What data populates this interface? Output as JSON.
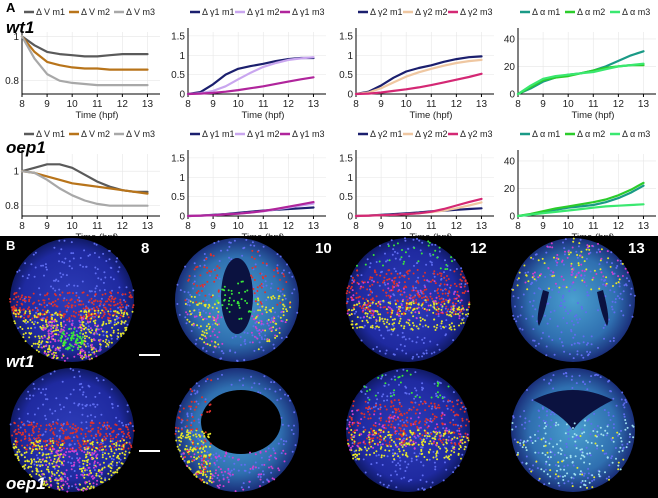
{
  "panel_a_letter": "A",
  "panel_b_letter": "B",
  "rows": [
    "wt1",
    "oep1"
  ],
  "xlabel": "Time (hpf)",
  "xticks": [
    "8",
    "9",
    "10",
    "11",
    "12",
    "13"
  ],
  "colors": {
    "V_m1": "#5a5a5a",
    "V_m2": "#b8741a",
    "V_m3": "#a8a8a8",
    "g_m1": "#1b1f6e",
    "g_m2": "#c9a6ef",
    "g_m3": "#b0259c",
    "g2_m1": "#1b1f6e",
    "g2_m2": "#efc7a1",
    "g2_m3": "#d42874",
    "a_m1": "#1a9a86",
    "a_m2": "#2bcc2b",
    "a_m3": "#3ae870"
  },
  "chart_data": [
    {
      "type": "line",
      "row": "wt1",
      "legend": [
        "Δ V m1",
        "Δ V m2",
        "Δ V m3"
      ],
      "yticks": [
        "0.8",
        "1"
      ],
      "ylim": [
        0.74,
        1.02
      ],
      "xlim": [
        8,
        13.5
      ],
      "series": [
        {
          "name": "Δ V m1",
          "color": "V_m1",
          "x": [
            8,
            8.5,
            9,
            9.5,
            10,
            10.5,
            11,
            11.5,
            12,
            12.5,
            13
          ],
          "y": [
            1.0,
            0.96,
            0.93,
            0.92,
            0.915,
            0.91,
            0.91,
            0.915,
            0.92,
            0.92,
            0.92
          ]
        },
        {
          "name": "Δ V m2",
          "color": "V_m2",
          "x": [
            8,
            8.5,
            9,
            9.5,
            10,
            10.5,
            11,
            11.5,
            12,
            12.5,
            13
          ],
          "y": [
            1.0,
            0.93,
            0.885,
            0.87,
            0.86,
            0.855,
            0.855,
            0.85,
            0.85,
            0.85,
            0.85
          ]
        },
        {
          "name": "Δ V m3",
          "color": "V_m3",
          "x": [
            8,
            8.5,
            9,
            9.5,
            10,
            10.5,
            11,
            11.5,
            12,
            12.5,
            13
          ],
          "y": [
            1.0,
            0.9,
            0.83,
            0.8,
            0.79,
            0.785,
            0.78,
            0.78,
            0.78,
            0.78,
            0.78
          ]
        }
      ]
    },
    {
      "type": "line",
      "row": "wt1",
      "legend": [
        "Δ γ1 m1",
        "Δ γ1 m2",
        "Δ γ1 m3"
      ],
      "yticks": [
        "0",
        "0.5",
        "1",
        "1.5"
      ],
      "ylim": [
        0,
        1.6
      ],
      "xlim": [
        8,
        13.5
      ],
      "series": [
        {
          "name": "Δ γ1 m1",
          "color": "g_m1",
          "x": [
            8,
            8.5,
            9,
            9.5,
            10,
            10.5,
            11,
            11.5,
            12,
            12.5,
            13
          ],
          "y": [
            0,
            0.05,
            0.25,
            0.5,
            0.65,
            0.72,
            0.78,
            0.85,
            0.9,
            0.93,
            0.93
          ]
        },
        {
          "name": "Δ γ1 m2",
          "color": "g_m2",
          "x": [
            8,
            8.5,
            9,
            9.5,
            10,
            10.5,
            11,
            11.5,
            12,
            12.5,
            13
          ],
          "y": [
            0,
            0.02,
            0.08,
            0.2,
            0.38,
            0.55,
            0.7,
            0.8,
            0.88,
            0.92,
            0.95
          ]
        },
        {
          "name": "Δ γ1 m3",
          "color": "g_m3",
          "x": [
            8,
            8.5,
            9,
            9.5,
            10,
            10.5,
            11,
            11.5,
            12,
            12.5,
            13
          ],
          "y": [
            0,
            0.01,
            0.03,
            0.06,
            0.1,
            0.15,
            0.2,
            0.26,
            0.32,
            0.38,
            0.43
          ]
        }
      ]
    },
    {
      "type": "line",
      "row": "wt1",
      "legend": [
        "Δ γ2 m1",
        "Δ γ2 m2",
        "Δ γ2 m3"
      ],
      "yticks": [
        "0",
        "0.5",
        "1",
        "1.5"
      ],
      "ylim": [
        0,
        1.6
      ],
      "xlim": [
        8,
        13.5
      ],
      "series": [
        {
          "name": "Δ γ2 m1",
          "color": "g2_m1",
          "x": [
            8,
            8.5,
            9,
            9.5,
            10,
            10.5,
            11,
            11.5,
            12,
            12.5,
            13
          ],
          "y": [
            0,
            0.06,
            0.22,
            0.42,
            0.58,
            0.67,
            0.74,
            0.83,
            0.9,
            0.95,
            0.97
          ]
        },
        {
          "name": "Δ γ2 m2",
          "color": "g2_m2",
          "x": [
            8,
            8.5,
            9,
            9.5,
            10,
            10.5,
            11,
            11.5,
            12,
            12.5,
            13
          ],
          "y": [
            0,
            0.04,
            0.15,
            0.3,
            0.45,
            0.56,
            0.65,
            0.73,
            0.8,
            0.85,
            0.88
          ]
        },
        {
          "name": "Δ γ2 m3",
          "color": "g2_m3",
          "x": [
            8,
            8.5,
            9,
            9.5,
            10,
            10.5,
            11,
            11.5,
            12,
            12.5,
            13
          ],
          "y": [
            0,
            0.01,
            0.04,
            0.08,
            0.12,
            0.17,
            0.23,
            0.3,
            0.37,
            0.44,
            0.52
          ]
        }
      ]
    },
    {
      "type": "line",
      "row": "wt1",
      "legend": [
        "Δ α m1",
        "Δ α m2",
        "Δ α m3"
      ],
      "yticks": [
        "0",
        "20",
        "40"
      ],
      "ylim": [
        0,
        45
      ],
      "xlim": [
        8,
        13.5
      ],
      "series": [
        {
          "name": "Δ α m1",
          "color": "a_m1",
          "x": [
            8,
            8.5,
            9,
            9.5,
            10,
            10.5,
            11,
            11.5,
            12,
            12.5,
            13
          ],
          "y": [
            0,
            4,
            9,
            12,
            14,
            15,
            17,
            20,
            24,
            28,
            31
          ]
        },
        {
          "name": "Δ α m2",
          "color": "a_m2",
          "x": [
            8,
            8.5,
            9,
            9.5,
            10,
            10.5,
            11,
            11.5,
            12,
            12.5,
            13
          ],
          "y": [
            0,
            5,
            10,
            12,
            13,
            15,
            17,
            19,
            20,
            21,
            21
          ]
        },
        {
          "name": "Δ α m3",
          "color": "a_m3",
          "x": [
            8,
            8.5,
            9,
            9.5,
            10,
            10.5,
            11,
            11.5,
            12,
            12.5,
            13
          ],
          "y": [
            0,
            6,
            11,
            13,
            14,
            15,
            16,
            18,
            20,
            21,
            22
          ]
        }
      ]
    },
    {
      "type": "line",
      "row": "oep1",
      "legend": [
        "Δ V m1",
        "Δ V m2",
        "Δ V m3"
      ],
      "yticks": [
        "0.8",
        "1"
      ],
      "ylim": [
        0.74,
        1.1
      ],
      "xlim": [
        8,
        13.5
      ],
      "series": [
        {
          "name": "Δ V m1",
          "color": "V_m1",
          "x": [
            8,
            8.5,
            9,
            9.5,
            10,
            10.5,
            11,
            11.5,
            12,
            12.5,
            13
          ],
          "y": [
            1.0,
            1.02,
            1.04,
            1.04,
            1.02,
            0.98,
            0.94,
            0.91,
            0.89,
            0.88,
            0.88
          ]
        },
        {
          "name": "Δ V m2",
          "color": "V_m2",
          "x": [
            8,
            8.5,
            9,
            9.5,
            10,
            10.5,
            11,
            11.5,
            12,
            12.5,
            13
          ],
          "y": [
            1.0,
            0.99,
            0.97,
            0.95,
            0.93,
            0.92,
            0.91,
            0.9,
            0.89,
            0.88,
            0.87
          ]
        },
        {
          "name": "Δ V m3",
          "color": "V_m3",
          "x": [
            8,
            8.5,
            9,
            9.5,
            10,
            10.5,
            11,
            11.5,
            12,
            12.5,
            13
          ],
          "y": [
            1.0,
            0.99,
            0.95,
            0.9,
            0.86,
            0.83,
            0.81,
            0.8,
            0.8,
            0.8,
            0.8
          ]
        }
      ]
    },
    {
      "type": "line",
      "row": "oep1",
      "legend": [
        "Δ γ1 m1",
        "Δ γ1 m2",
        "Δ γ1 m3"
      ],
      "yticks": [
        "0",
        "0.5",
        "1",
        "1.5"
      ],
      "ylim": [
        0,
        1.6
      ],
      "xlim": [
        8,
        13.5
      ],
      "series": [
        {
          "name": "Δ γ1 m1",
          "color": "g_m1",
          "x": [
            8,
            8.5,
            9,
            9.5,
            10,
            10.5,
            11,
            11.5,
            12,
            12.5,
            13
          ],
          "y": [
            0,
            0.01,
            0.03,
            0.05,
            0.08,
            0.11,
            0.14,
            0.16,
            0.18,
            0.2,
            0.22
          ]
        },
        {
          "name": "Δ γ1 m2",
          "color": "g_m2",
          "x": [
            8,
            8.5,
            9,
            9.5,
            10,
            10.5,
            11,
            11.5,
            12,
            12.5,
            13
          ],
          "y": [
            0,
            0.01,
            0.02,
            0.04,
            0.06,
            0.09,
            0.12,
            0.17,
            0.22,
            0.27,
            0.32
          ]
        },
        {
          "name": "Δ γ1 m3",
          "color": "g_m3",
          "x": [
            8,
            8.5,
            9,
            9.5,
            10,
            10.5,
            11,
            11.5,
            12,
            12.5,
            13
          ],
          "y": [
            0,
            0.01,
            0.02,
            0.04,
            0.06,
            0.09,
            0.13,
            0.18,
            0.24,
            0.3,
            0.36
          ]
        }
      ]
    },
    {
      "type": "line",
      "row": "oep1",
      "legend": [
        "Δ γ2 m1",
        "Δ γ2 m2",
        "Δ γ2 m3"
      ],
      "yticks": [
        "0",
        "0.5",
        "1",
        "1.5"
      ],
      "ylim": [
        0,
        1.6
      ],
      "xlim": [
        8,
        13.5
      ],
      "series": [
        {
          "name": "Δ γ2 m1",
          "color": "g2_m1",
          "x": [
            8,
            8.5,
            9,
            9.5,
            10,
            10.5,
            11,
            11.5,
            12,
            12.5,
            13
          ],
          "y": [
            0,
            0.01,
            0.03,
            0.05,
            0.07,
            0.09,
            0.12,
            0.14,
            0.16,
            0.18,
            0.2
          ]
        },
        {
          "name": "Δ γ2 m2",
          "color": "g2_m2",
          "x": [
            8,
            8.5,
            9,
            9.5,
            10,
            10.5,
            11,
            11.5,
            12,
            12.5,
            13
          ],
          "y": [
            0,
            0.01,
            0.02,
            0.03,
            0.05,
            0.07,
            0.1,
            0.14,
            0.2,
            0.27,
            0.35
          ]
        },
        {
          "name": "Δ γ2 m3",
          "color": "g2_m3",
          "x": [
            8,
            8.5,
            9,
            9.5,
            10,
            10.5,
            11,
            11.5,
            12,
            12.5,
            13
          ],
          "y": [
            0,
            0.01,
            0.02,
            0.03,
            0.05,
            0.07,
            0.11,
            0.18,
            0.27,
            0.36,
            0.44
          ]
        }
      ]
    },
    {
      "type": "line",
      "row": "oep1",
      "legend": [
        "Δ α m1",
        "Δ α m2",
        "Δ α m3"
      ],
      "yticks": [
        "0",
        "20",
        "40"
      ],
      "ylim": [
        0,
        45
      ],
      "xlim": [
        8,
        13.5
      ],
      "series": [
        {
          "name": "Δ α m1",
          "color": "a_m1",
          "x": [
            8,
            8.5,
            9,
            9.5,
            10,
            10.5,
            11,
            11.5,
            12,
            12.5,
            13
          ],
          "y": [
            0,
            1,
            3,
            4.5,
            6,
            7,
            8,
            10,
            13,
            17,
            22
          ]
        },
        {
          "name": "Δ α m2",
          "color": "a_m2",
          "x": [
            8,
            8.5,
            9,
            9.5,
            10,
            10.5,
            11,
            11.5,
            12,
            12.5,
            13
          ],
          "y": [
            0,
            1.5,
            3.5,
            5.5,
            7,
            8.5,
            10,
            12,
            15,
            19,
            24
          ]
        },
        {
          "name": "Δ α m3",
          "color": "a_m3",
          "x": [
            8,
            8.5,
            9,
            9.5,
            10,
            10.5,
            11,
            11.5,
            12,
            12.5,
            13
          ],
          "y": [
            0,
            1,
            2,
            3,
            4,
            5,
            6,
            7,
            7.5,
            8,
            8.5
          ]
        }
      ]
    }
  ],
  "panel_b": {
    "stage_labels": [
      "8",
      "10",
      "12",
      "13"
    ],
    "genotype_labels": [
      "wt1",
      "oep1"
    ]
  }
}
